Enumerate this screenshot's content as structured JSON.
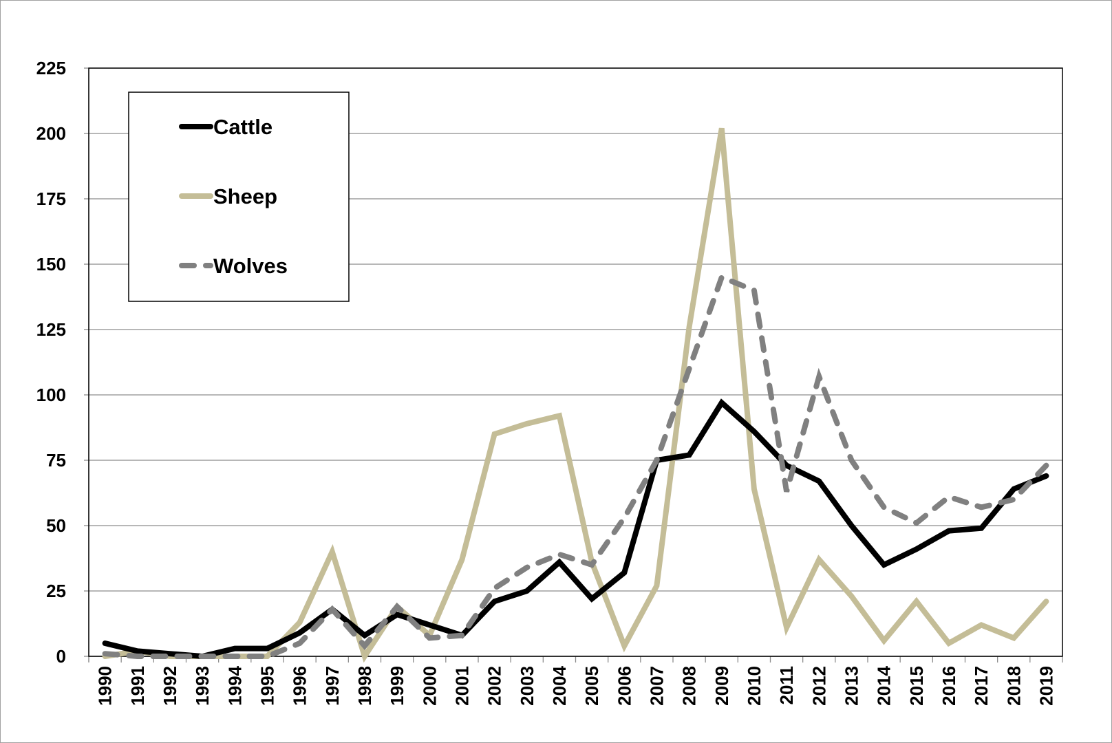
{
  "chart_data": {
    "type": "line",
    "title": "",
    "xlabel": "",
    "ylabel": "",
    "ylim": [
      0,
      225
    ],
    "yticks": [
      0,
      25,
      50,
      75,
      100,
      125,
      150,
      175,
      200,
      225
    ],
    "grid": "horizontal",
    "legend_position": "top-left",
    "categories": [
      "1990",
      "1991",
      "1992",
      "1993",
      "1994",
      "1995",
      "1996",
      "1997",
      "1998",
      "1999",
      "2000",
      "2001",
      "2002",
      "2003",
      "2004",
      "2005",
      "2006",
      "2007",
      "2008",
      "2009",
      "2010",
      "2011",
      "2012",
      "2013",
      "2014",
      "2015",
      "2016",
      "2017",
      "2018",
      "2019"
    ],
    "series": [
      {
        "name": "Cattle",
        "color": "#000000",
        "style": "solid",
        "values": [
          5,
          2,
          1,
          0,
          3,
          3,
          9,
          18,
          8,
          16,
          12,
          8,
          21,
          25,
          36,
          22,
          32,
          75,
          77,
          97,
          86,
          73,
          67,
          50,
          35,
          41,
          48,
          49,
          64,
          69
        ]
      },
      {
        "name": "Sheep",
        "color": "#c4bd97",
        "style": "solid",
        "values": [
          0,
          2,
          0,
          0,
          0,
          0,
          13,
          40,
          0,
          19,
          8,
          37,
          85,
          89,
          92,
          36,
          4,
          27,
          126,
          202,
          64,
          11,
          37,
          23,
          6,
          21,
          5,
          12,
          7,
          21
        ]
      },
      {
        "name": "Wolves",
        "color": "#808080",
        "style": "dashed",
        "values": [
          1,
          0,
          0,
          0,
          0,
          0,
          5,
          18,
          4,
          19,
          7,
          8,
          26,
          34,
          39,
          35,
          53,
          75,
          110,
          145,
          140,
          63,
          107,
          75,
          57,
          51,
          61,
          57,
          60,
          73
        ]
      }
    ]
  }
}
